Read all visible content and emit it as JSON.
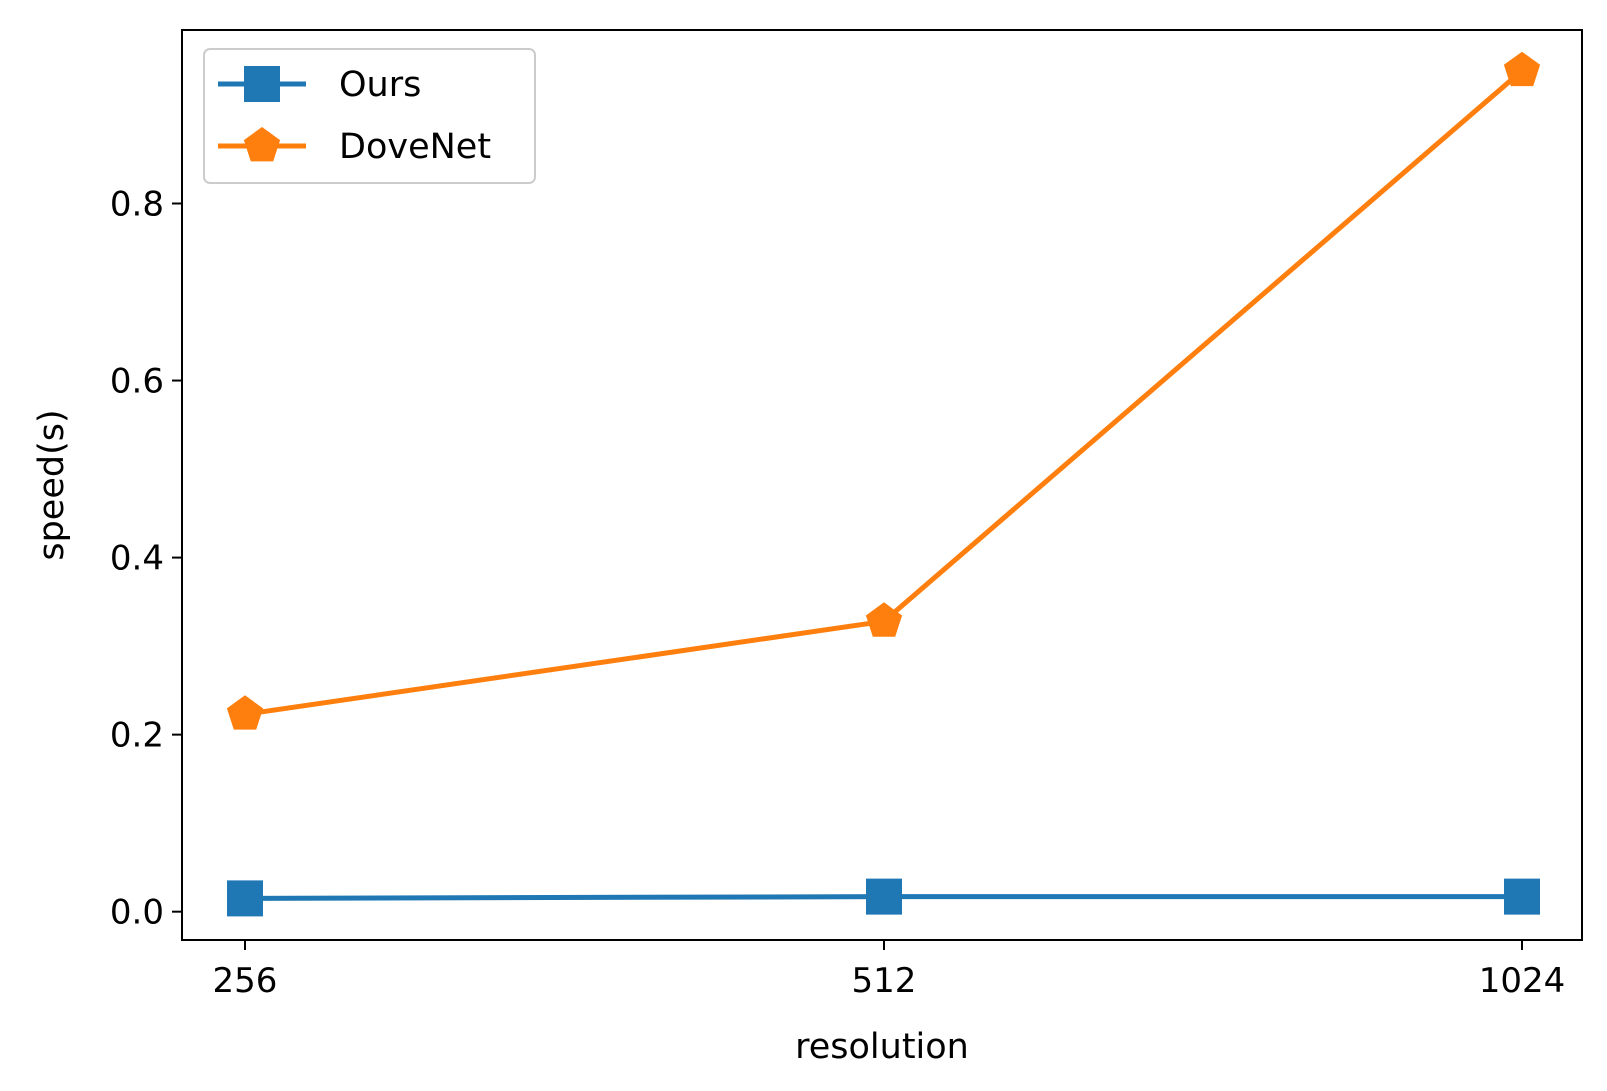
{
  "chart_data": {
    "type": "line",
    "x": [
      "256",
      "512",
      "1024"
    ],
    "xlabel": "resolution",
    "ylabel": "speed(s)",
    "ylim": [
      -0.032,
      0.996
    ],
    "yticks": [
      "0.0",
      "0.2",
      "0.4",
      "0.6",
      "0.8"
    ],
    "ytick_values": [
      0.0,
      0.2,
      0.4,
      0.6,
      0.8
    ],
    "grid": false,
    "legend_position": "upper-left",
    "series": [
      {
        "name": "Ours",
        "values": [
          0.015,
          0.017,
          0.017
        ],
        "color": "#1f77b4",
        "marker": "square"
      },
      {
        "name": "DoveNet",
        "values": [
          0.223,
          0.328,
          0.95
        ],
        "color": "#ff7f0e",
        "marker": "pentagon"
      }
    ]
  }
}
